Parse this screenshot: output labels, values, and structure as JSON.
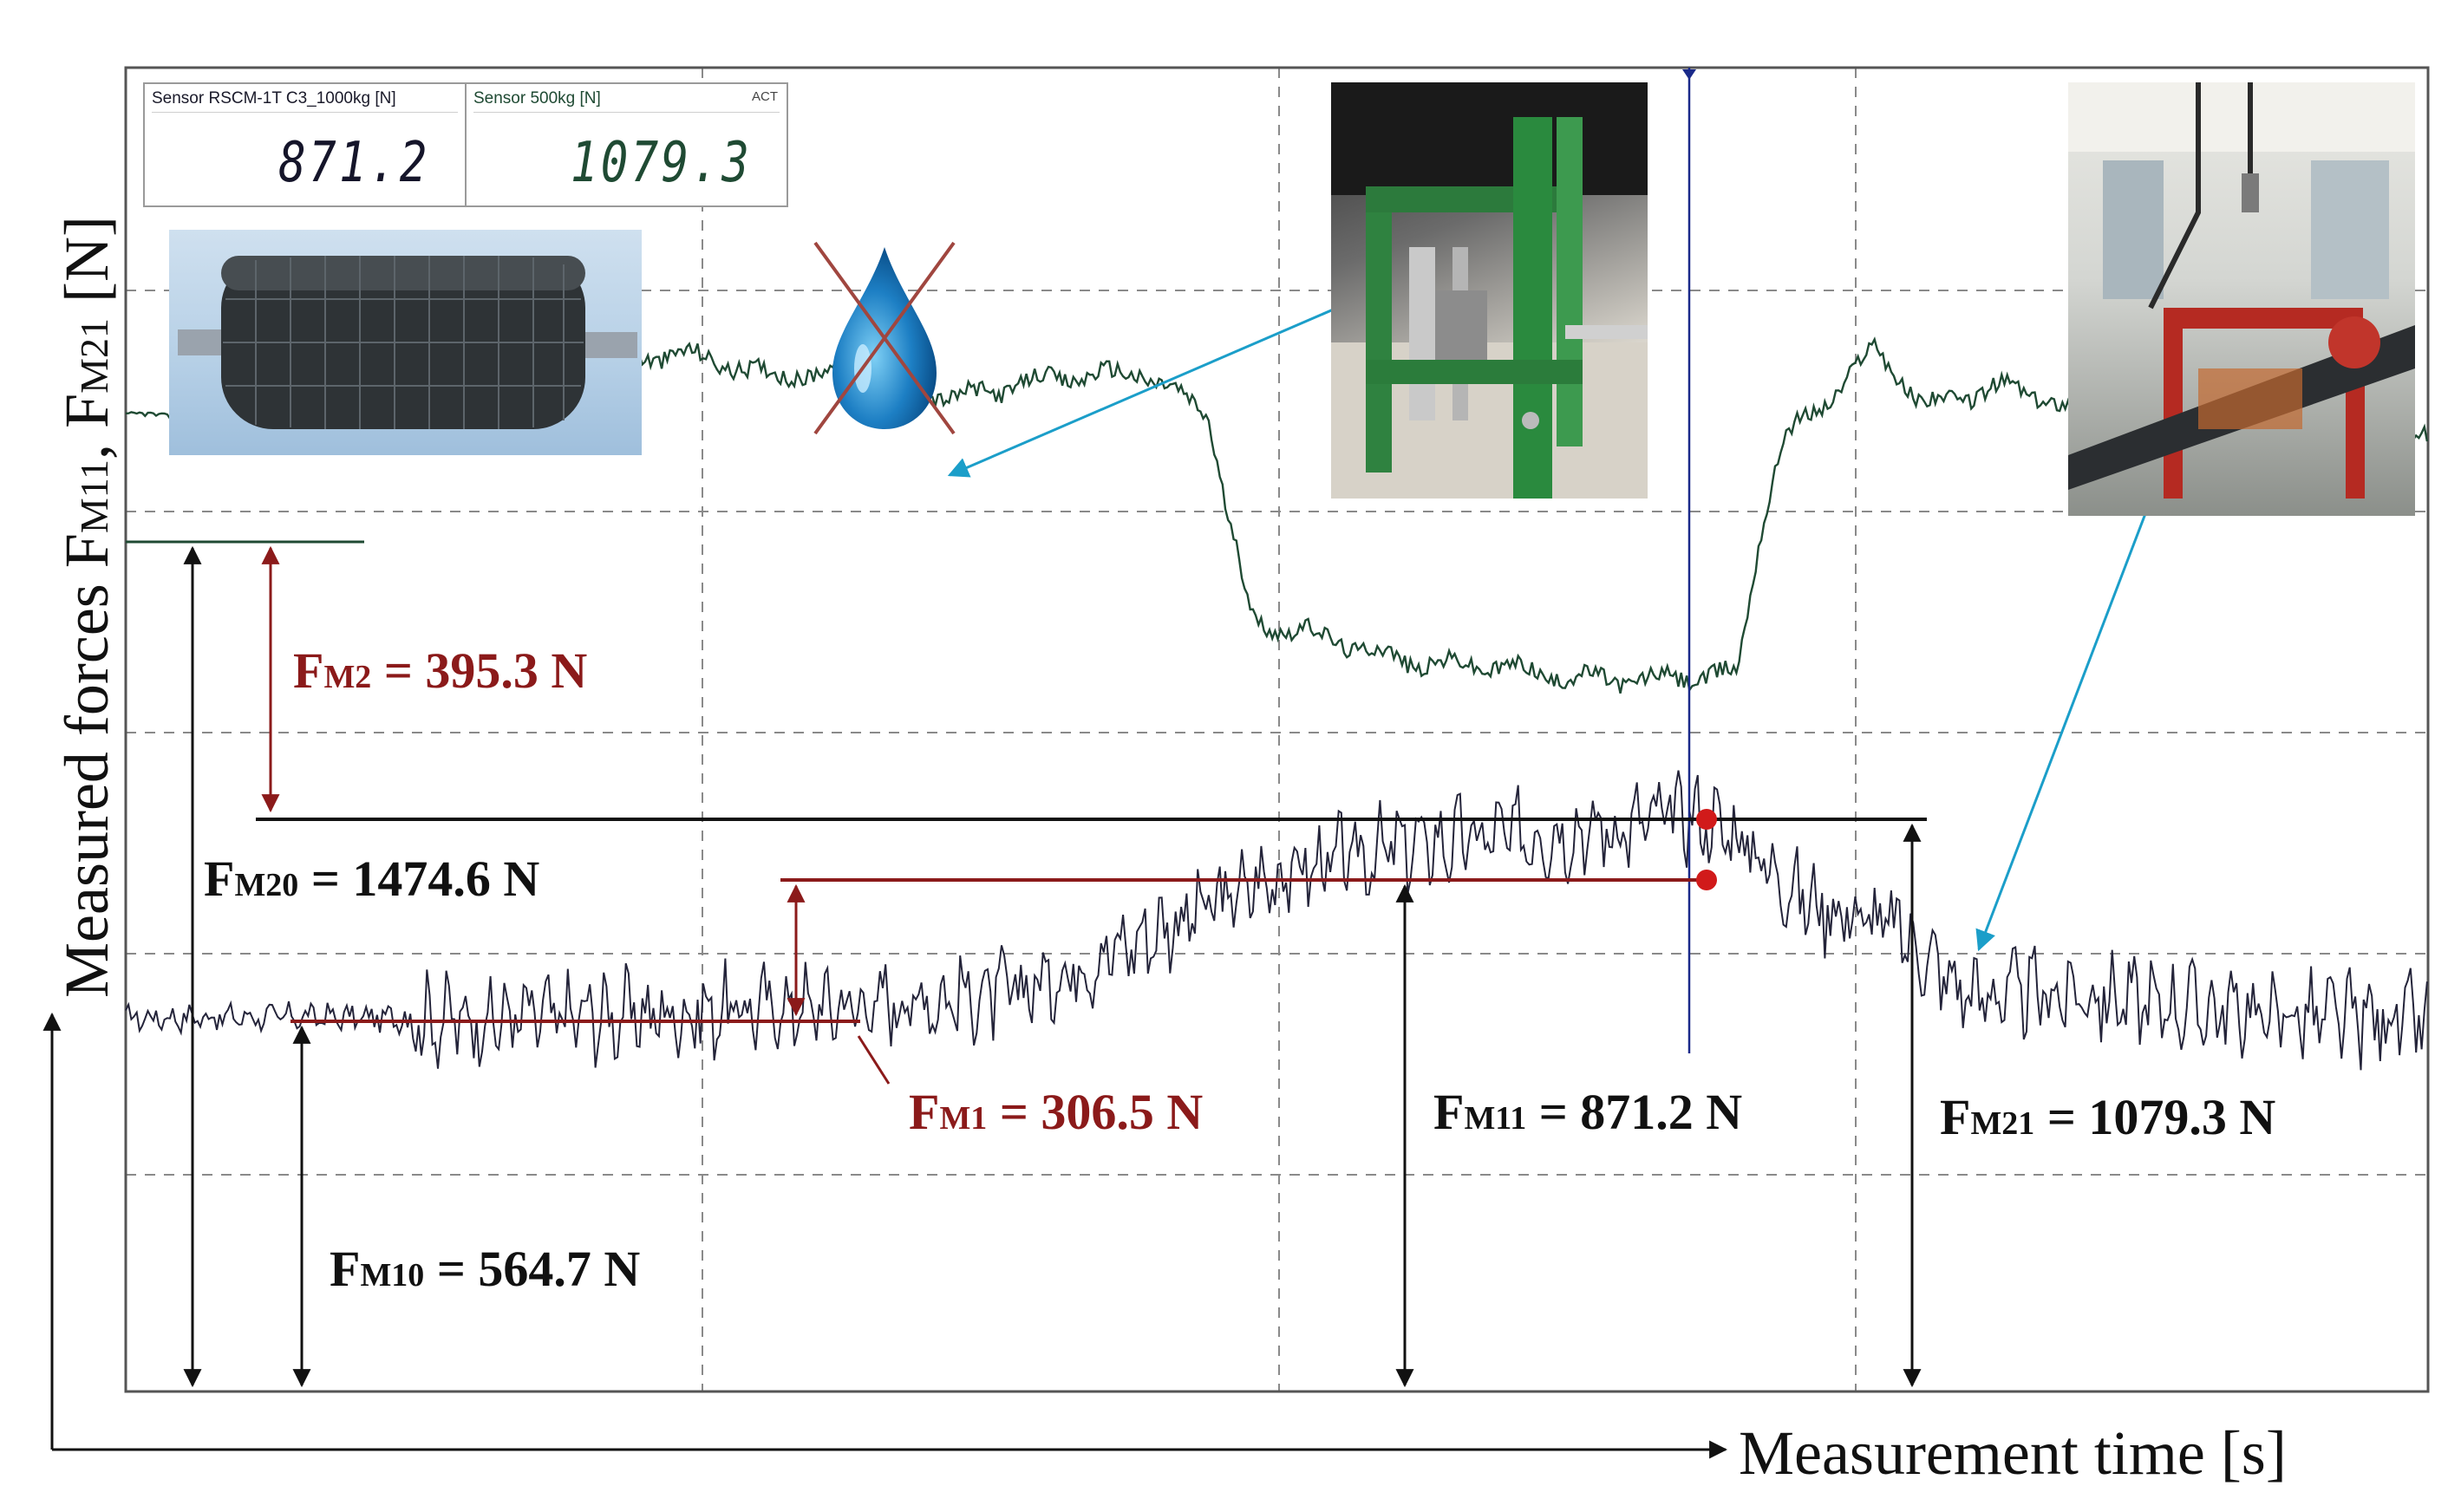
{
  "chart_data": {
    "type": "line",
    "title": "",
    "xlabel": "Measurement time [s]",
    "ylabel": "Measured forces F_M11, F_M21 [N]",
    "ylabel_parts": [
      {
        "text": "Measured forces F",
        "sub": false
      },
      {
        "text": "M11",
        "sub": true
      },
      {
        "text": ", F",
        "sub": false
      },
      {
        "text": "M21",
        "sub": true
      },
      {
        "text": " [N]",
        "sub": false
      }
    ],
    "grid": true,
    "series": [
      {
        "name": "Sensor RSCM-1T C3_1000kg [N]",
        "color": "#24243a",
        "x": [
          0,
          8,
          15,
          20,
          24,
          28,
          32,
          34,
          38,
          40,
          45,
          50,
          55,
          60,
          65,
          66,
          67,
          68,
          70,
          73,
          75,
          77,
          78,
          80,
          85,
          90,
          95,
          100
        ],
        "y": [
          564.7,
          566,
          562,
          568,
          570,
          580,
          585,
          590,
          600,
          620,
          700,
          780,
          820,
          840,
          850,
          860,
          871.2,
          871.2,
          840,
          740,
          720,
          700,
          660,
          600,
          600,
          580,
          565,
          560
        ]
      },
      {
        "name": "Sensor 500kg [N]",
        "color": "#1f4a33",
        "x": [
          0,
          12,
          12.5,
          14,
          16,
          20,
          24,
          28,
          32,
          36,
          40,
          44,
          47,
          48,
          49,
          51,
          56,
          60,
          62,
          66,
          68,
          70,
          71,
          72,
          74,
          76,
          78,
          82,
          86,
          88,
          90,
          95,
          100
        ],
        "y": [
          1474.6,
          1474.6,
          1505,
          1460,
          1530,
          1545,
          1570,
          1535,
          1540,
          1500,
          1530,
          1540,
          1480,
          1300,
          1160,
          1150,
          1100,
          1095,
          1080,
          1075,
          1079.3,
          1085,
          1300,
          1440,
          1500,
          1580,
          1490,
          1520,
          1460,
          1445,
          1445,
          1442,
          1442
        ]
      }
    ],
    "annotations": [
      {
        "label": "F",
        "sub": "M2",
        "value": "= 395.3 N",
        "color": "#8b1a1a"
      },
      {
        "label": "F",
        "sub": "M20",
        "value": "= 1474.6 N",
        "color": "#111111"
      },
      {
        "label": "F",
        "sub": "M1",
        "value": "= 306.5 N",
        "color": "#8b1a1a"
      },
      {
        "label": "F",
        "sub": "M11",
        "value": "= 871.2 N",
        "color": "#111111"
      },
      {
        "label": "F",
        "sub": "M21",
        "value": "= 1079.3 N",
        "color": "#111111"
      },
      {
        "label": "F",
        "sub": "M10",
        "value": "= 564.7 N",
        "color": "#111111"
      }
    ]
  },
  "sensor_panel": {
    "left": {
      "name": "Sensor RSCM-1T C3_1000kg [N]",
      "value": "871.2"
    },
    "right": {
      "name": "Sensor 500kg [N]",
      "value": "1079.3",
      "tag": "ACT"
    }
  },
  "colors": {
    "grid": "#8a8a8a",
    "frame": "#555555",
    "dark_red": "#8b1a1a",
    "marker_red": "#d11a1a",
    "arrow_blue": "#1b9ec9",
    "cursor": "#1a2a8a"
  },
  "icons": [
    "conveyor-roller-photo",
    "water-drop-crossed-icon",
    "test-rig-photo",
    "belt-test-photo"
  ]
}
